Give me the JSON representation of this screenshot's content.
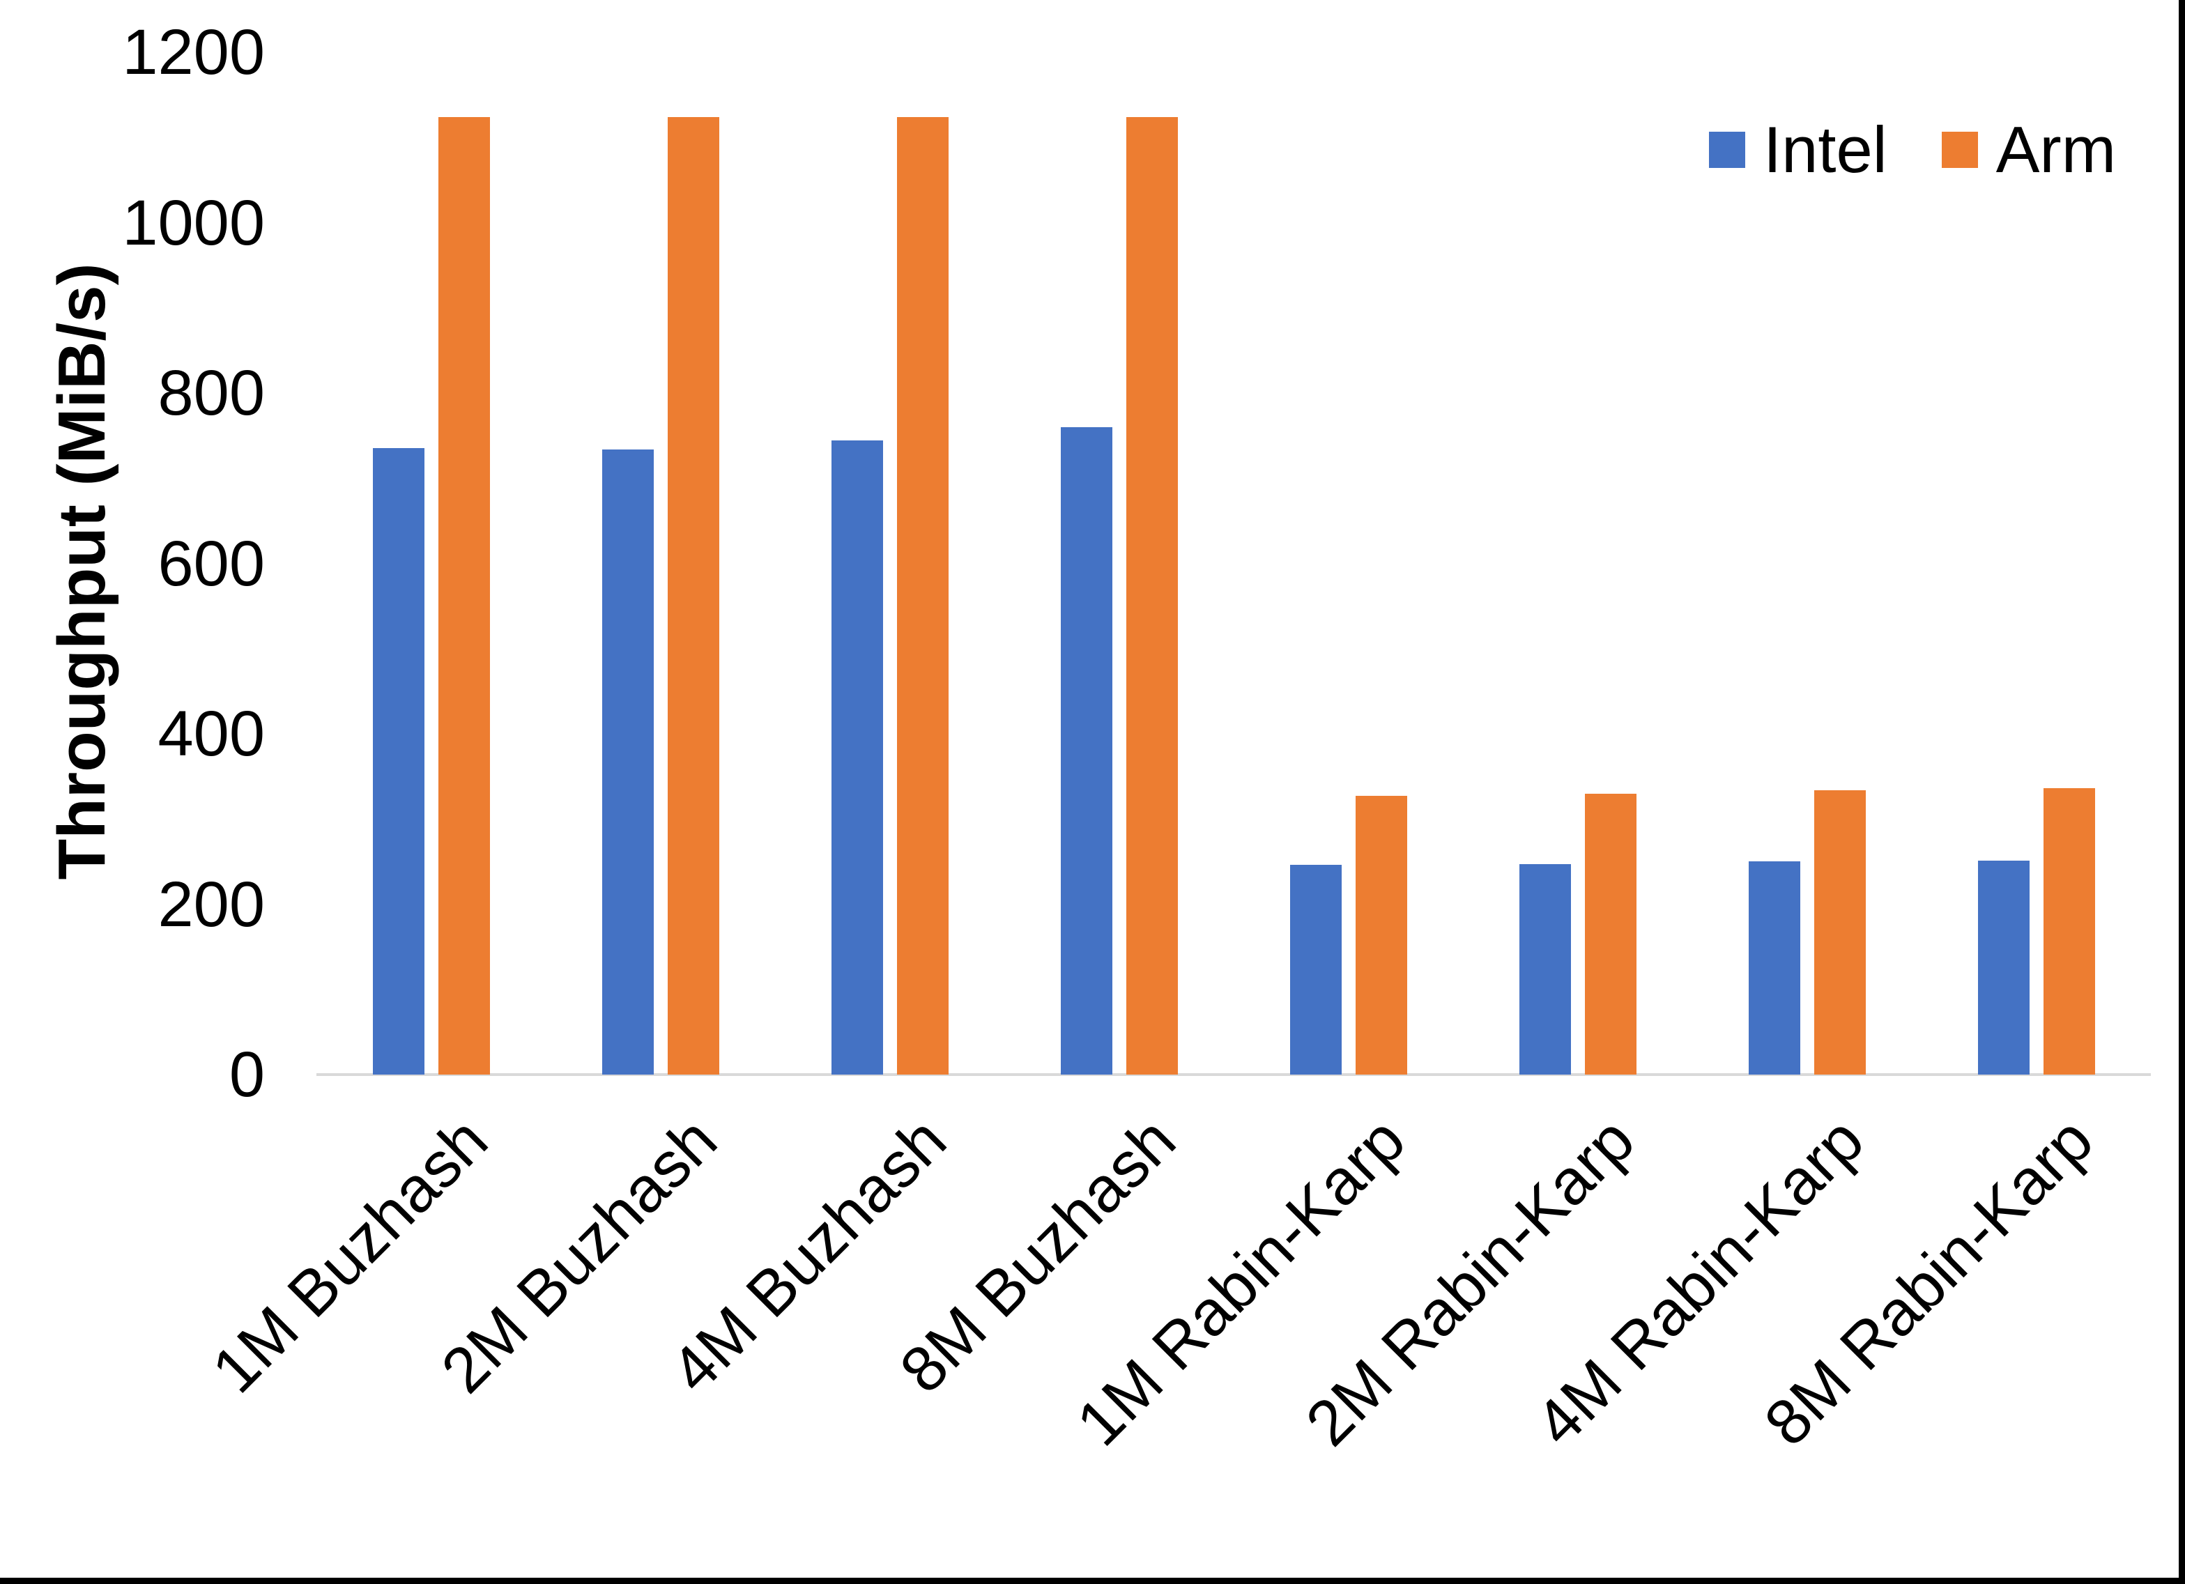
{
  "chart_data": {
    "type": "bar",
    "title": "",
    "xlabel": "",
    "ylabel": "Throughput (MiB/s)",
    "ylim": [
      0,
      1200
    ],
    "yticks": [
      0,
      200,
      400,
      600,
      800,
      1000,
      1200
    ],
    "grid": false,
    "legend_position": "top-right",
    "categories": [
      "1M Buzhash",
      "2M Buzhash",
      "4M Buzhash",
      "8M Buzhash",
      "1M Rabin-Karp",
      "2M Rabin-Karp",
      "4M Rabin-Karp",
      "8M Rabin-Karp"
    ],
    "series": [
      {
        "name": "Intel",
        "color": "#4472C4",
        "values": [
          735,
          734,
          744,
          760,
          246,
          247,
          250,
          251
        ]
      },
      {
        "name": "Arm",
        "color": "#ED7D31",
        "values": [
          1124,
          1124,
          1124,
          1124,
          327,
          330,
          334,
          336
        ]
      }
    ]
  },
  "legend": {
    "items": [
      {
        "label": "Intel",
        "color": "#4472C4"
      },
      {
        "label": "Arm",
        "color": "#ED7D31"
      }
    ]
  },
  "colors": {
    "background": "#FFFFFF",
    "axis_line": "#D9D9D9",
    "text": "#000000",
    "frame": "#000000"
  }
}
